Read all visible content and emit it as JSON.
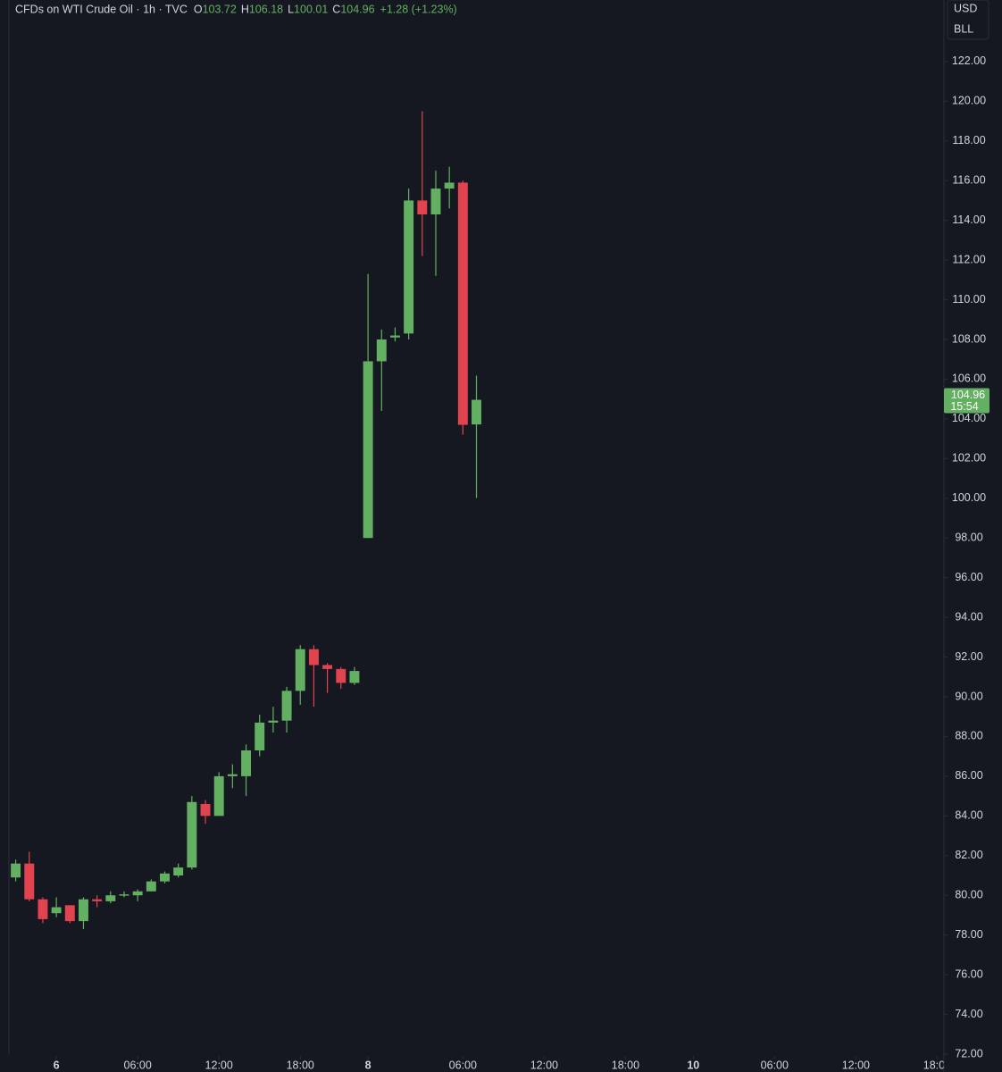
{
  "chart_data": {
    "type": "candlestick",
    "header": {
      "symbol": "CFDs on WTI Crude Oil · 1h · TVC",
      "fields": [
        {
          "key": "O",
          "value": 103.72
        },
        {
          "key": "H",
          "value": 106.18
        },
        {
          "key": "L",
          "value": 100.01
        },
        {
          "key": "C",
          "value": 104.96
        }
      ],
      "change": "+1.28 (+1.23%)"
    },
    "currency": "USD",
    "unit": "BLL",
    "last_price": 104.96,
    "countdown": "15:54",
    "up_color": "#64b062",
    "down_color": "#e2444f",
    "x": [
      0,
      1,
      2,
      3,
      4,
      5,
      6,
      7,
      8,
      9,
      10,
      11,
      12,
      13,
      14,
      15,
      16,
      17,
      18,
      19,
      20,
      21,
      22,
      23,
      24,
      25,
      26,
      27,
      28,
      29,
      30,
      31,
      32,
      33,
      34
    ],
    "open": [
      80.9,
      81.6,
      79.8,
      79.1,
      79.5,
      78.7,
      79.8,
      79.7,
      80.0,
      80.0,
      80.2,
      80.7,
      81.0,
      81.4,
      84.6,
      84.0,
      86.0,
      86.0,
      87.3,
      88.7,
      88.8,
      90.3,
      92.4,
      91.6,
      91.4,
      90.7,
      98.0,
      106.9,
      108.1,
      108.3,
      115.0,
      114.3,
      115.6,
      115.9,
      103.72
    ],
    "high": [
      81.8,
      82.2,
      79.9,
      79.9,
      79.5,
      79.9,
      80.0,
      80.2,
      80.2,
      80.3,
      80.8,
      81.2,
      81.6,
      85.0,
      84.8,
      86.2,
      86.6,
      87.6,
      89.1,
      89.5,
      90.5,
      92.6,
      92.6,
      91.7,
      91.5,
      91.5,
      111.3,
      108.5,
      108.6,
      115.6,
      119.5,
      116.5,
      116.7,
      116.0,
      106.18
    ],
    "low": [
      80.7,
      79.7,
      78.6,
      78.9,
      78.6,
      78.3,
      79.4,
      79.6,
      79.9,
      79.7,
      80.2,
      80.6,
      80.9,
      81.3,
      83.6,
      84.0,
      85.4,
      85.0,
      87.0,
      88.2,
      88.2,
      89.6,
      89.5,
      90.2,
      90.4,
      90.6,
      98.0,
      104.4,
      107.9,
      108.0,
      112.2,
      111.2,
      114.6,
      103.2,
      100.01
    ],
    "close": [
      81.6,
      79.8,
      78.8,
      79.4,
      78.7,
      79.8,
      79.7,
      80.0,
      80.05,
      80.2,
      80.7,
      81.1,
      81.4,
      84.7,
      84.0,
      86.0,
      86.1,
      87.3,
      88.7,
      88.8,
      90.3,
      92.4,
      91.6,
      91.4,
      90.7,
      91.3,
      106.9,
      108.0,
      108.2,
      115.0,
      114.3,
      115.6,
      115.9,
      103.7,
      104.96
    ],
    "xlim": [
      -0.5,
      68.5
    ],
    "xticks": [
      {
        "value": 3,
        "label": "6"
      },
      {
        "value": 9,
        "label": "06:00"
      },
      {
        "value": 15,
        "label": "12:00"
      },
      {
        "value": 21,
        "label": "18:00"
      },
      {
        "value": 26,
        "label": "8"
      },
      {
        "value": 33,
        "label": "06:00"
      },
      {
        "value": 39,
        "label": "12:00"
      },
      {
        "value": 45,
        "label": "18:00"
      },
      {
        "value": 50,
        "label": "10"
      },
      {
        "value": 56,
        "label": "06:00"
      },
      {
        "value": 62,
        "label": "12:00"
      },
      {
        "value": 68,
        "label": "18:00"
      }
    ],
    "ylim": [
      71.1,
      125.1
    ],
    "yticks": [
      {
        "value": 72,
        "label": "72.00"
      },
      {
        "value": 74,
        "label": "74.00"
      },
      {
        "value": 76,
        "label": "76.00"
      },
      {
        "value": 78,
        "label": "78.00"
      },
      {
        "value": 80,
        "label": "80.00"
      },
      {
        "value": 82,
        "label": "82.00"
      },
      {
        "value": 84,
        "label": "84.00"
      },
      {
        "value": 86,
        "label": "86.00"
      },
      {
        "value": 88,
        "label": "88.00"
      },
      {
        "value": 90,
        "label": "90.00"
      },
      {
        "value": 92,
        "label": "92.00"
      },
      {
        "value": 94,
        "label": "94.00"
      },
      {
        "value": 96,
        "label": "96.00"
      },
      {
        "value": 98,
        "label": "98.00"
      },
      {
        "value": 100,
        "label": "100.00"
      },
      {
        "value": 102,
        "label": "102.00"
      },
      {
        "value": 104,
        "label": "104.00"
      },
      {
        "value": 106,
        "label": "106.00"
      },
      {
        "value": 108,
        "label": "108.00"
      },
      {
        "value": 110,
        "label": "110.00"
      },
      {
        "value": 112,
        "label": "112.00"
      },
      {
        "value": 114,
        "label": "114.00"
      },
      {
        "value": 116,
        "label": "116.00"
      },
      {
        "value": 118,
        "label": "118.00"
      },
      {
        "value": 120,
        "label": "120.00"
      },
      {
        "value": 122,
        "label": "122.00"
      }
    ]
  }
}
